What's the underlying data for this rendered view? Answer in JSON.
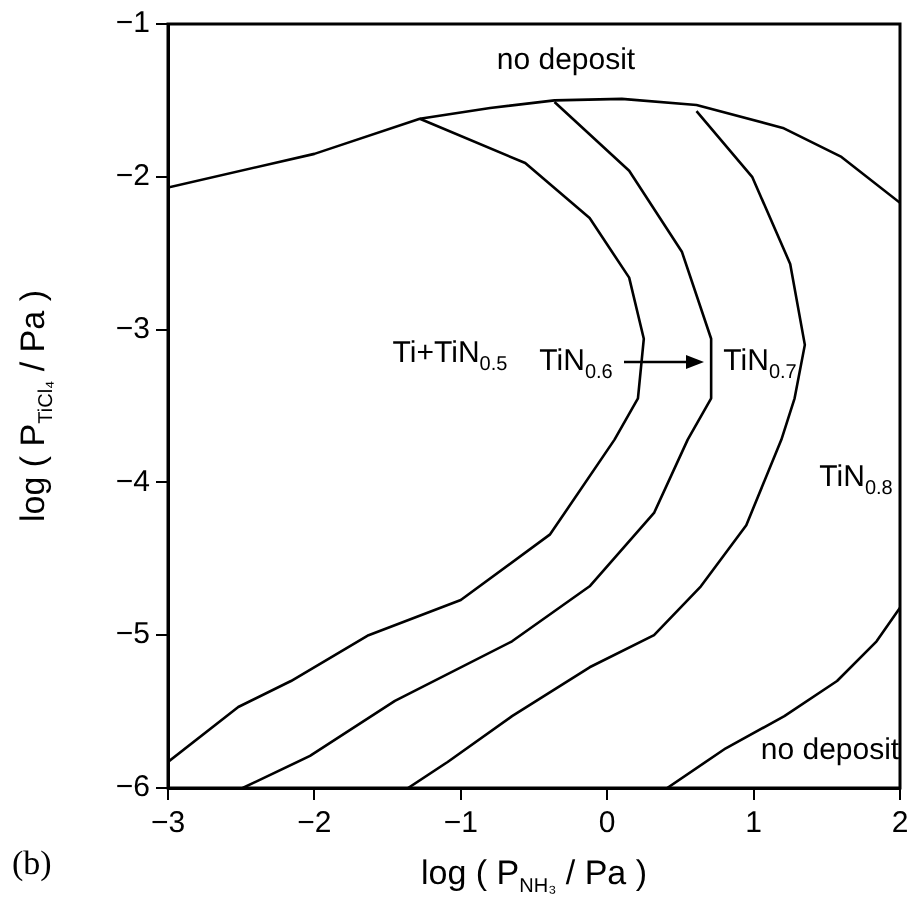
{
  "chart_data": {
    "type": "line",
    "xlabel": "log ( P$_{NH₃}$ / Pa )",
    "ylabel": "log ( P$_{TiCl₄}$ / Pa )",
    "xlim": [
      -3,
      2
    ],
    "xticks": [
      -3,
      -2,
      -1,
      0,
      1,
      2
    ],
    "ylim": [
      -6,
      -1
    ],
    "yticks": [
      -6,
      -5,
      -4,
      -3,
      -2,
      -1
    ],
    "grid": false,
    "legend": false,
    "marker": "none",
    "line_style": "solid",
    "series": [
      {
        "color": "#000000",
        "x": [
          -3,
          -2,
          -1.28,
          -0.8,
          -0.36,
          0.1,
          0.61,
          1.2,
          1.6,
          2
        ],
        "values": [
          -2.07,
          -1.85,
          -1.62,
          -1.55,
          -1.5,
          -1.49,
          -1.53,
          -1.68,
          -1.87,
          -2.17
        ]
      },
      {
        "color": "#000000",
        "x": [
          -1.28,
          -0.56,
          -0.12,
          0.15,
          0.25,
          0.21,
          0.05,
          -0.39,
          -1.0,
          -1.63,
          -2.16,
          -2.52,
          -3
        ],
        "values": [
          -1.62,
          -1.91,
          -2.27,
          -2.66,
          -3.06,
          -3.45,
          -3.72,
          -4.34,
          -4.77,
          -5.0,
          -5.3,
          -5.47,
          -5.83
        ]
      },
      {
        "color": "#000000",
        "x": [
          -0.36,
          0.15,
          0.51,
          0.71,
          0.71,
          0.55,
          0.32,
          -0.12,
          -0.65,
          -1.45,
          -2.03,
          -2.49
        ],
        "values": [
          -1.51,
          -1.96,
          -2.49,
          -3.06,
          -3.45,
          -3.72,
          -4.2,
          -4.68,
          -5.04,
          -5.43,
          -5.79,
          -6.0
        ]
      },
      {
        "color": "#000000",
        "x": [
          0.61,
          0.99,
          1.25,
          1.35,
          1.28,
          1.19,
          0.95,
          0.64,
          0.32,
          -0.12,
          -0.65,
          -1.09,
          -1.36
        ],
        "values": [
          -1.57,
          -2.0,
          -2.57,
          -3.1,
          -3.45,
          -3.72,
          -4.28,
          -4.68,
          -5.0,
          -5.21,
          -5.53,
          -5.83,
          -6.0
        ]
      },
      {
        "color": "#000000",
        "x": [
          0.41,
          0.81,
          1.21,
          1.57,
          1.84,
          2
        ],
        "values": [
          -6.0,
          -5.74,
          -5.53,
          -5.3,
          -5.04,
          -4.82
        ]
      }
    ],
    "annotations": [
      "no deposit",
      "Ti+TiN$_{0.5}$",
      "TiN$_{0.6}$",
      "TiN$_{0.7}$",
      "TiN$_{0.8}$",
      "no deposit",
      "(b)"
    ]
  }
}
